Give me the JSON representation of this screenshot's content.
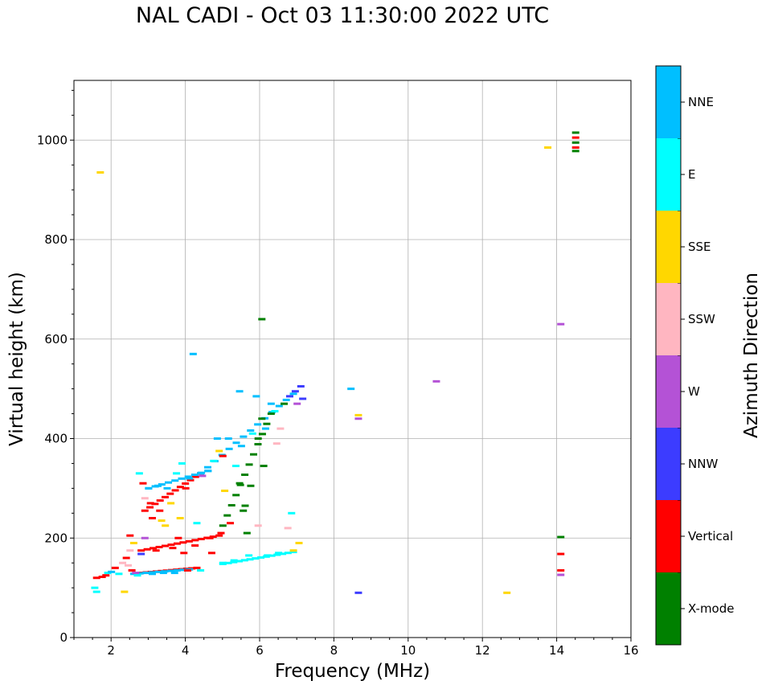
{
  "title": "NAL CADI - Oct 03 11:30:00 2022 UTC",
  "chart_data": {
    "type": "scatter",
    "title": "NAL CADI - Oct 03 11:30:00 2022 UTC",
    "xlabel": "Frequency (MHz)",
    "ylabel": "Virtual height (km)",
    "xlim": [
      1,
      16
    ],
    "ylim": [
      0,
      1120
    ],
    "xticks": [
      2,
      4,
      6,
      8,
      10,
      12,
      14,
      16
    ],
    "yticks": [
      0,
      200,
      400,
      600,
      800,
      1000
    ],
    "grid": true,
    "colorbar": {
      "label": "Azimuth Direction",
      "categories": [
        "X-mode",
        "Vertical",
        "NNW",
        "W",
        "SSW",
        "SSE",
        "E",
        "NNE"
      ],
      "colors": [
        "#008000",
        "#ff0000",
        "#3c3cff",
        "#b452d6",
        "#ffb6c1",
        "#ffd700",
        "#00ffff",
        "#00bfff"
      ]
    },
    "points": [
      {
        "f": 1.7,
        "h": 935,
        "c": "SSE"
      },
      {
        "f": 1.55,
        "h": 100,
        "c": "E"
      },
      {
        "f": 1.6,
        "h": 92,
        "c": "E"
      },
      {
        "f": 1.6,
        "h": 120,
        "c": "Vertical"
      },
      {
        "f": 1.75,
        "h": 122,
        "c": "Vertical"
      },
      {
        "f": 1.85,
        "h": 125,
        "c": "Vertical"
      },
      {
        "f": 1.9,
        "h": 130,
        "c": "E"
      },
      {
        "f": 2.0,
        "h": 132,
        "c": "NNE"
      },
      {
        "f": 2.1,
        "h": 140,
        "c": "Vertical"
      },
      {
        "f": 2.2,
        "h": 128,
        "c": "E"
      },
      {
        "f": 2.3,
        "h": 150,
        "c": "SSW"
      },
      {
        "f": 2.35,
        "h": 92,
        "c": "SSE"
      },
      {
        "f": 2.4,
        "h": 160,
        "c": "Vertical"
      },
      {
        "f": 2.45,
        "h": 145,
        "c": "SSW"
      },
      {
        "f": 2.5,
        "h": 175,
        "c": "SSW"
      },
      {
        "f": 2.5,
        "h": 205,
        "c": "Vertical"
      },
      {
        "f": 2.55,
        "h": 135,
        "c": "Vertical"
      },
      {
        "f": 2.6,
        "h": 190,
        "c": "SSE"
      },
      {
        "f": 2.65,
        "h": 130,
        "c": "W"
      },
      {
        "f": 2.7,
        "h": 125,
        "c": "E"
      },
      {
        "f": 2.75,
        "h": 330,
        "c": "E"
      },
      {
        "f": 2.8,
        "h": 168,
        "c": "NNW"
      },
      {
        "f": 2.85,
        "h": 310,
        "c": "Vertical"
      },
      {
        "f": 2.9,
        "h": 280,
        "c": "SSW"
      },
      {
        "f": 2.9,
        "h": 200,
        "c": "W"
      },
      {
        "f": 3.0,
        "h": 300,
        "c": "NNE"
      },
      {
        "f": 3.05,
        "h": 270,
        "c": "Vertical"
      },
      {
        "f": 3.1,
        "h": 240,
        "c": "Vertical"
      },
      {
        "f": 3.1,
        "h": 128,
        "c": "NNE"
      },
      {
        "f": 3.2,
        "h": 175,
        "c": "Vertical"
      },
      {
        "f": 3.25,
        "h": 305,
        "c": "NNE"
      },
      {
        "f": 3.3,
        "h": 255,
        "c": "Vertical"
      },
      {
        "f": 3.35,
        "h": 235,
        "c": "SSE"
      },
      {
        "f": 3.4,
        "h": 130,
        "c": "NNE"
      },
      {
        "f": 3.45,
        "h": 225,
        "c": "SSE"
      },
      {
        "f": 3.5,
        "h": 300,
        "c": "NNE"
      },
      {
        "f": 3.6,
        "h": 270,
        "c": "SSE"
      },
      {
        "f": 3.65,
        "h": 180,
        "c": "Vertical"
      },
      {
        "f": 3.7,
        "h": 130,
        "c": "NNE"
      },
      {
        "f": 3.75,
        "h": 330,
        "c": "E"
      },
      {
        "f": 3.8,
        "h": 200,
        "c": "Vertical"
      },
      {
        "f": 3.85,
        "h": 240,
        "c": "SSE"
      },
      {
        "f": 3.9,
        "h": 350,
        "c": "E"
      },
      {
        "f": 3.95,
        "h": 170,
        "c": "Vertical"
      },
      {
        "f": 4.0,
        "h": 300,
        "c": "Vertical"
      },
      {
        "f": 4.05,
        "h": 135,
        "c": "Vertical"
      },
      {
        "f": 4.1,
        "h": 320,
        "c": "NNE"
      },
      {
        "f": 4.2,
        "h": 570,
        "c": "NNE"
      },
      {
        "f": 4.25,
        "h": 185,
        "c": "Vertical"
      },
      {
        "f": 4.3,
        "h": 230,
        "c": "E"
      },
      {
        "f": 4.4,
        "h": 135,
        "c": "E"
      },
      {
        "f": 4.45,
        "h": 325,
        "c": "W"
      },
      {
        "f": 4.6,
        "h": 335,
        "c": "NNE"
      },
      {
        "f": 4.65,
        "h": 200,
        "c": "Vertical"
      },
      {
        "f": 4.7,
        "h": 170,
        "c": "Vertical"
      },
      {
        "f": 4.75,
        "h": 355,
        "c": "E"
      },
      {
        "f": 4.85,
        "h": 400,
        "c": "NNE"
      },
      {
        "f": 4.9,
        "h": 375,
        "c": "SSE"
      },
      {
        "f": 4.95,
        "h": 210,
        "c": "Vertical"
      },
      {
        "f": 5.0,
        "h": 365,
        "c": "Vertical"
      },
      {
        "f": 5.0,
        "h": 150,
        "c": "E"
      },
      {
        "f": 5.05,
        "h": 295,
        "c": "SSE"
      },
      {
        "f": 5.15,
        "h": 400,
        "c": "NNE"
      },
      {
        "f": 5.2,
        "h": 230,
        "c": "Vertical"
      },
      {
        "f": 5.3,
        "h": 155,
        "c": "E"
      },
      {
        "f": 5.35,
        "h": 345,
        "c": "E"
      },
      {
        "f": 5.45,
        "h": 495,
        "c": "NNE"
      },
      {
        "f": 5.45,
        "h": 310,
        "c": "X-mode"
      },
      {
        "f": 5.5,
        "h": 385,
        "c": "NNE"
      },
      {
        "f": 5.55,
        "h": 255,
        "c": "X-mode"
      },
      {
        "f": 5.6,
        "h": 265,
        "c": "X-mode"
      },
      {
        "f": 5.65,
        "h": 210,
        "c": "X-mode"
      },
      {
        "f": 5.7,
        "h": 165,
        "c": "E"
      },
      {
        "f": 5.75,
        "h": 305,
        "c": "X-mode"
      },
      {
        "f": 5.8,
        "h": 410,
        "c": "E"
      },
      {
        "f": 5.9,
        "h": 485,
        "c": "NNE"
      },
      {
        "f": 5.95,
        "h": 400,
        "c": "X-mode"
      },
      {
        "f": 5.95,
        "h": 225,
        "c": "SSW"
      },
      {
        "f": 6.05,
        "h": 640,
        "c": "X-mode"
      },
      {
        "f": 6.05,
        "h": 440,
        "c": "X-mode"
      },
      {
        "f": 6.1,
        "h": 345,
        "c": "X-mode"
      },
      {
        "f": 6.15,
        "h": 420,
        "c": "NNE"
      },
      {
        "f": 6.2,
        "h": 165,
        "c": "E"
      },
      {
        "f": 6.3,
        "h": 470,
        "c": "NNE"
      },
      {
        "f": 6.4,
        "h": 455,
        "c": "E"
      },
      {
        "f": 6.45,
        "h": 390,
        "c": "SSW"
      },
      {
        "f": 6.5,
        "h": 170,
        "c": "E"
      },
      {
        "f": 6.55,
        "h": 420,
        "c": "SSW"
      },
      {
        "f": 6.65,
        "h": 470,
        "c": "X-mode"
      },
      {
        "f": 6.75,
        "h": 220,
        "c": "SSW"
      },
      {
        "f": 6.8,
        "h": 485,
        "c": "NNW"
      },
      {
        "f": 6.85,
        "h": 250,
        "c": "E"
      },
      {
        "f": 6.9,
        "h": 175,
        "c": "SSE"
      },
      {
        "f": 6.95,
        "h": 495,
        "c": "NNW"
      },
      {
        "f": 7.0,
        "h": 470,
        "c": "W"
      },
      {
        "f": 7.05,
        "h": 190,
        "c": "SSE"
      },
      {
        "f": 7.1,
        "h": 505,
        "c": "NNW"
      },
      {
        "f": 7.15,
        "h": 480,
        "c": "NNW"
      },
      {
        "f": 8.45,
        "h": 500,
        "c": "NNE"
      },
      {
        "f": 8.65,
        "h": 447,
        "c": "SSE"
      },
      {
        "f": 8.65,
        "h": 440,
        "c": "W"
      },
      {
        "f": 8.65,
        "h": 90,
        "c": "NNW"
      },
      {
        "f": 10.75,
        "h": 515,
        "c": "W"
      },
      {
        "f": 12.65,
        "h": 90,
        "c": "SSE"
      },
      {
        "f": 13.75,
        "h": 985,
        "c": "SSE"
      },
      {
        "f": 14.1,
        "h": 630,
        "c": "W"
      },
      {
        "f": 14.1,
        "h": 202,
        "c": "X-mode"
      },
      {
        "f": 14.1,
        "h": 168,
        "c": "Vertical"
      },
      {
        "f": 14.1,
        "h": 135,
        "c": "Vertical"
      },
      {
        "f": 14.1,
        "h": 126,
        "c": "W"
      },
      {
        "f": 14.5,
        "h": 1015,
        "c": "X-mode"
      },
      {
        "f": 14.5,
        "h": 1005,
        "c": "Vertical"
      },
      {
        "f": 14.5,
        "h": 995,
        "c": "X-mode"
      },
      {
        "f": 14.5,
        "h": 985,
        "c": "Vertical"
      },
      {
        "f": 14.5,
        "h": 978,
        "c": "X-mode"
      }
    ],
    "traces": [
      {
        "c": "E",
        "from": [
          5.0,
          148
        ],
        "to": [
          6.9,
          172
        ],
        "n": 14
      },
      {
        "c": "Vertical",
        "from": [
          2.8,
          130
        ],
        "to": [
          4.3,
          140
        ],
        "n": 12
      },
      {
        "c": "NNE",
        "from": [
          2.6,
          128
        ],
        "to": [
          4.1,
          137
        ],
        "n": 10
      },
      {
        "c": "Vertical",
        "from": [
          2.8,
          175
        ],
        "to": [
          4.9,
          205
        ],
        "n": 14
      },
      {
        "c": "Vertical",
        "from": [
          2.9,
          255
        ],
        "to": [
          4.4,
          330
        ],
        "n": 12
      },
      {
        "c": "NNE",
        "from": [
          3.0,
          300
        ],
        "to": [
          4.6,
          335
        ],
        "n": 10
      },
      {
        "c": "NNE",
        "from": [
          4.4,
          330
        ],
        "to": [
          6.9,
          490
        ],
        "n": 14
      },
      {
        "c": "X-mode",
        "from": [
          5.0,
          225
        ],
        "to": [
          6.3,
          450
        ],
        "n": 12
      }
    ]
  }
}
